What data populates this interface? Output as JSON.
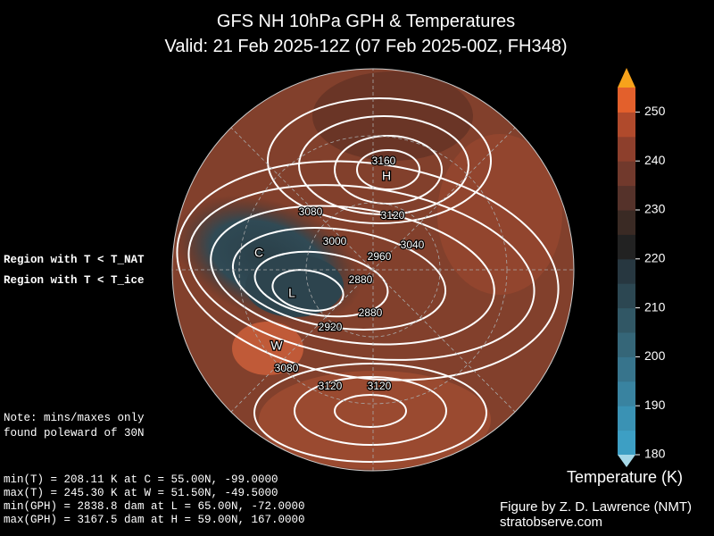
{
  "header": {
    "title": "GFS NH 10hPa GPH & Temperatures",
    "subtitle": "Valid: 21 Feb 2025-12Z  (07 Feb 2025-00Z, FH348)"
  },
  "legend": {
    "nat": {
      "text": "Region with T < T_NAT",
      "color": "#ff00ff"
    },
    "ice": {
      "text": "Region with T < T_ice",
      "color": "#7fff00"
    }
  },
  "note": [
    "Note: mins/maxes only",
    "found poleward of 30N"
  ],
  "stats": [
    "min(T) = 208.11 K at C = 55.00N,  -99.0000",
    "max(T) = 245.30 K at W = 51.50N,  -49.5000",
    "min(GPH) = 2838.8 dam at L = 65.00N,  -72.0000",
    "max(GPH) = 3167.5 dam at H = 59.00N,  167.0000"
  ],
  "markers": [
    "H",
    "L",
    "C",
    "W"
  ],
  "contour_labels": [
    "3160",
    "3080",
    "3120",
    "3000",
    "3040",
    "2960",
    "2880",
    "2880",
    "2920",
    "3080",
    "3120",
    "3120"
  ],
  "colorbar": {
    "label": "Temperature (K)",
    "lim": [
      180,
      255
    ],
    "ticks": [
      180,
      190,
      200,
      210,
      220,
      230,
      240,
      250
    ],
    "colors": [
      "#3d9fc4",
      "#3a92b4",
      "#3983a0",
      "#37748c",
      "#356678",
      "#315765",
      "#2c4752",
      "#273740",
      "#222222",
      "#3a2a24",
      "#55322a",
      "#71392c",
      "#8d3f2c",
      "#b04a2c",
      "#e3602c"
    ],
    "over_color": "#f7a21b",
    "under_color": "#a6d8e8"
  },
  "credit": [
    "Figure by Z. D. Lawrence (NMT)",
    "stratobserve.com"
  ]
}
